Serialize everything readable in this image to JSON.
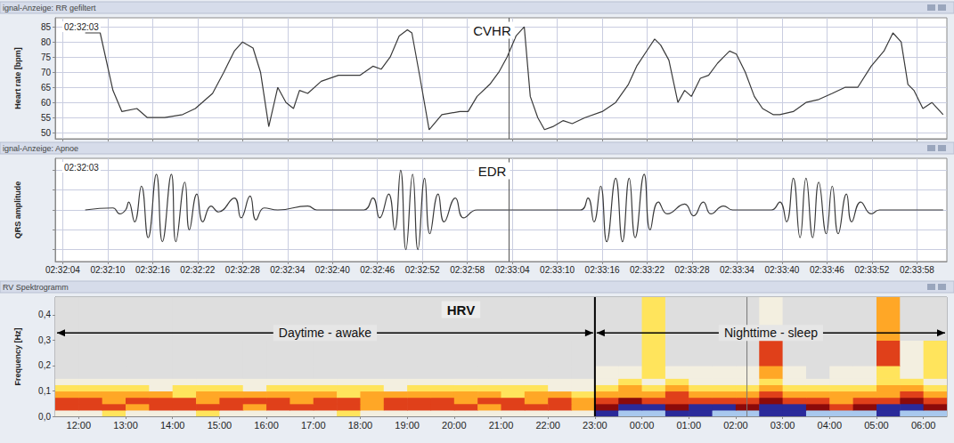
{
  "chart_data": [
    {
      "type": "line",
      "header": "ignal-Anzeige: RR gefiltert",
      "title": "CVHR",
      "time_label": "02:32:03",
      "y_label": "Heart rate [bpm]",
      "color": "#3a3a3a",
      "line_style": "solid",
      "x": [
        9127.0,
        9129.0,
        9130.7,
        9131.9,
        9133.9,
        9135.3,
        9137.6,
        9140.0,
        9141.7,
        9144.0,
        9145.5,
        9146.9,
        9148.0,
        9149.4,
        9150.4,
        9151.5,
        9152.7,
        9153.8,
        9154.8,
        9155.6,
        9156.7,
        9158.5,
        9160.8,
        9163.7,
        9165.4,
        9166.5,
        9167.7,
        9168.9,
        9170.0,
        9170.6,
        9171.7,
        9172.9,
        9174.6,
        9177.0,
        9178.1,
        9179.3,
        9181.0,
        9182.2,
        9183.3,
        9184.5,
        9185.6,
        9186.4,
        9187.4,
        9188.3,
        9189.4,
        9190.8,
        9192.0,
        9193.7,
        9196.0,
        9197.8,
        9199.5,
        9200.6,
        9202.2,
        9203.0,
        9203.8,
        9204.9,
        9206.1,
        9207.0,
        9207.9,
        9209.1,
        9210.2,
        9211.4,
        9212.2,
        9213.0,
        9213.9,
        9215.1,
        9216.3,
        9217.4,
        9218.8,
        9219.7,
        9221.5,
        9223.2,
        9224.9,
        9226.7,
        9228.4,
        9230.1,
        9231.9,
        9233.6,
        9234.8,
        9235.9,
        9236.8,
        9237.6,
        9238.8,
        9240.0,
        9241.5
      ],
      "values": [
        83,
        83,
        64,
        57,
        58,
        55,
        55,
        56,
        58,
        63,
        70,
        77,
        80,
        78,
        70,
        52,
        65,
        60,
        58,
        64,
        63,
        67,
        69,
        69,
        72,
        71,
        75,
        82,
        84,
        83,
        68,
        51,
        56,
        57,
        57,
        62,
        66,
        70,
        75,
        82,
        85,
        62,
        55,
        51,
        52,
        54,
        53,
        55,
        57,
        60,
        66,
        72,
        78,
        81,
        79,
        74,
        60,
        64,
        62,
        68,
        69,
        73,
        75,
        77,
        76,
        70,
        62,
        58,
        56,
        56,
        57,
        60,
        61,
        63,
        65,
        65,
        72,
        77,
        83,
        80,
        66,
        64,
        58,
        60,
        56
      ],
      "xlim": [
        9123,
        9242
      ],
      "xticks": [
        9124,
        9130,
        9136,
        9142,
        9148,
        9154,
        9160,
        9166,
        9172,
        9178,
        9184,
        9190,
        9196,
        9202,
        9208,
        9214,
        9220,
        9226,
        9232,
        9238
      ],
      "ylim": [
        48,
        88
      ],
      "yticks": [
        50,
        55,
        60,
        65,
        70,
        75,
        80,
        85
      ],
      "cursor": 9183.5,
      "grid": true,
      "tick_labels": "y"
    },
    {
      "type": "line",
      "header": "ignal-Anzeige: Apnoe",
      "title": "EDR",
      "time_label": "02:32:03",
      "y_label": "QRS amplitude",
      "color": "#3a3a3a",
      "line_style": "smooth",
      "x": [
        9127.0,
        9130.7,
        9131.6,
        9132.4,
        9132.8,
        9133.6,
        9134.5,
        9135.4,
        9136.5,
        9137.3,
        9138.5,
        9139.1,
        9140.3,
        9140.9,
        9141.9,
        9142.7,
        9143.8,
        9144.8,
        9146.9,
        9147.8,
        9149.0,
        9149.8,
        9150.9,
        9152.7,
        9156.7,
        9157.9,
        9164.2,
        9165.4,
        9166.3,
        9167.5,
        9168.3,
        9169.1,
        9169.8,
        9170.7,
        9171.4,
        9172.3,
        9173.0,
        9174.1,
        9174.9,
        9176.4,
        9177.5,
        9179.3,
        9193.1,
        9194.1,
        9194.9,
        9195.8,
        9196.6,
        9197.8,
        9198.7,
        9199.6,
        9200.4,
        9201.6,
        9202.4,
        9203.5,
        9204.7,
        9207.0,
        9208.2,
        9209.5,
        9210.5,
        9212.2,
        9213.4,
        9218.6,
        9219.7,
        9220.6,
        9221.5,
        9222.4,
        9223.2,
        9224.1,
        9224.9,
        9225.9,
        9226.7,
        9227.5,
        9228.6,
        9229.3,
        9230.5,
        9231.9,
        9233.0,
        9241.5
      ],
      "values": [
        0,
        0.05,
        -0.1,
        0,
        0.2,
        -0.3,
        0.6,
        -0.7,
        0.9,
        -0.8,
        0.9,
        -0.8,
        0.7,
        -0.5,
        0.4,
        -0.3,
        0.1,
        -0.05,
        0.3,
        -0.2,
        0.35,
        -0.25,
        0.05,
        0,
        0.1,
        0,
        0,
        0.3,
        -0.2,
        0.4,
        -0.5,
        1.0,
        -1.0,
        0.9,
        -1.0,
        0.8,
        -0.6,
        0.4,
        -0.3,
        0.3,
        -0.2,
        0,
        0,
        0.3,
        -0.3,
        0.6,
        -0.8,
        0.8,
        -0.8,
        0.8,
        -0.7,
        0.9,
        -0.5,
        0.2,
        -0.1,
        0.15,
        -0.15,
        0.2,
        -0.1,
        0.1,
        0,
        0,
        0.2,
        -0.3,
        0.8,
        -0.7,
        0.8,
        -0.7,
        0.7,
        -0.6,
        0.6,
        -0.6,
        0.4,
        -0.3,
        0.2,
        -0.1,
        0,
        0
      ],
      "xlim": [
        9123,
        9242
      ],
      "xticks": [
        {
          "value": 9124,
          "label": "02:32:04"
        },
        {
          "value": 9130,
          "label": "02:32:10"
        },
        {
          "value": 9136,
          "label": "02:32:16"
        },
        {
          "value": 9142,
          "label": "02:32:22"
        },
        {
          "value": 9148,
          "label": "02:32:28"
        },
        {
          "value": 9154,
          "label": "02:32:34"
        },
        {
          "value": 9160,
          "label": "02:32:40"
        },
        {
          "value": 9166,
          "label": "02:32:46"
        },
        {
          "value": 9172,
          "label": "02:32:52"
        },
        {
          "value": 9178,
          "label": "02:32:58"
        },
        {
          "value": 9184,
          "label": "02:33:04"
        },
        {
          "value": 9190,
          "label": "02:33:10"
        },
        {
          "value": 9196,
          "label": "02:33:16"
        },
        {
          "value": 9202,
          "label": "02:33:22"
        },
        {
          "value": 9208,
          "label": "02:33:28"
        },
        {
          "value": 9214,
          "label": "02:33:34"
        },
        {
          "value": 9220,
          "label": "02:33:40"
        },
        {
          "value": 9226,
          "label": "02:33:46"
        },
        {
          "value": 9232,
          "label": "02:33:52"
        },
        {
          "value": 9238,
          "label": "02:33:58"
        }
      ],
      "ylim": [
        -1.3,
        1.3
      ],
      "yticks": [
        -1,
        -0.5,
        0,
        0.5,
        1
      ],
      "cursor": 9183.5,
      "grid": true,
      "tick_labels": "x"
    },
    {
      "type": "heatmap",
      "header": "RV Spektrogramm",
      "title": "HRV",
      "y_label": "Frequency [Hz]",
      "time_edges": [
        11.5,
        12,
        12.5,
        13,
        13.5,
        14,
        14.5,
        15,
        15.5,
        16,
        16.5,
        17,
        17.5,
        18,
        18.5,
        19,
        19.5,
        20,
        20.5,
        21,
        21.5,
        22,
        22.5,
        23,
        23.5,
        24,
        24.5,
        25,
        25.5,
        26,
        26.5,
        27,
        27.5,
        28,
        28.5,
        29,
        29.5,
        30,
        30.5
      ],
      "freq_edges": [
        0,
        0.025,
        0.05,
        0.075,
        0.1,
        0.125,
        0.15,
        0.2,
        0.3,
        0.47
      ],
      "power": [
        [
          1,
          1,
          2,
          1,
          1,
          1,
          2,
          1,
          1,
          1,
          1,
          1,
          2,
          1,
          1,
          1,
          1,
          1,
          1,
          1,
          1,
          1,
          1,
          6,
          7,
          7,
          6,
          6,
          7,
          7,
          6,
          6,
          7,
          7,
          7,
          6,
          7,
          7
        ],
        [
          4,
          4,
          4,
          3,
          4,
          4,
          4,
          4,
          3,
          4,
          4,
          4,
          4,
          3,
          4,
          4,
          4,
          4,
          3,
          4,
          4,
          4,
          3,
          5,
          6,
          6,
          5,
          6,
          6,
          5,
          6,
          6,
          5,
          4,
          5,
          6,
          6,
          5
        ],
        [
          4,
          4,
          3,
          4,
          4,
          4,
          3,
          4,
          4,
          4,
          3,
          4,
          4,
          3,
          4,
          4,
          4,
          3,
          4,
          4,
          3,
          4,
          3,
          4,
          5,
          4,
          4,
          4,
          4,
          4,
          5,
          4,
          4,
          3,
          4,
          4,
          5,
          4
        ],
        [
          3,
          3,
          3,
          3,
          3,
          2,
          3,
          3,
          3,
          3,
          3,
          3,
          2,
          3,
          3,
          3,
          3,
          3,
          3,
          2,
          3,
          3,
          2,
          3,
          3,
          3,
          4,
          3,
          3,
          3,
          4,
          3,
          3,
          3,
          3,
          3,
          4,
          3
        ],
        [
          2,
          2,
          2,
          2,
          1,
          2,
          2,
          2,
          1,
          2,
          2,
          2,
          2,
          2,
          1,
          2,
          2,
          2,
          2,
          2,
          2,
          1,
          1,
          2,
          3,
          2,
          3,
          2,
          2,
          2,
          3,
          2,
          2,
          2,
          2,
          3,
          3,
          2
        ],
        [
          1,
          1,
          1,
          1,
          1,
          1,
          1,
          1,
          1,
          1,
          1,
          1,
          1,
          1,
          1,
          1,
          1,
          1,
          1,
          1,
          1,
          1,
          1,
          1,
          2,
          1,
          2,
          1,
          1,
          1,
          2,
          1,
          1,
          1,
          1,
          2,
          2,
          1
        ],
        [
          0,
          0,
          0,
          0,
          0,
          0,
          0,
          0,
          0,
          0,
          0,
          0,
          0,
          0,
          0,
          0,
          0,
          0,
          0,
          0,
          0,
          0,
          0,
          1,
          1,
          2,
          1,
          1,
          1,
          1,
          3,
          1,
          0,
          1,
          1,
          2,
          1,
          2
        ],
        [
          0,
          0,
          0,
          0,
          0,
          0,
          0,
          0,
          0,
          0,
          0,
          0,
          0,
          0,
          0,
          0,
          0,
          0,
          0,
          0,
          0,
          0,
          0,
          0,
          0,
          2,
          0,
          0,
          0,
          0,
          4,
          0,
          0,
          0,
          0,
          4,
          1,
          2
        ],
        [
          0,
          0,
          0,
          0,
          0,
          0,
          0,
          0,
          0,
          0,
          0,
          0,
          0,
          0,
          0,
          0,
          0,
          0,
          0,
          0,
          0,
          0,
          0,
          0,
          0,
          2,
          0,
          0,
          0,
          0,
          1,
          0,
          0,
          0,
          0,
          3,
          0,
          0
        ]
      ],
      "xlim": [
        11.5,
        30.5
      ],
      "xticks": [
        {
          "value": 12,
          "label": "12:00"
        },
        {
          "value": 13,
          "label": "13:00"
        },
        {
          "value": 14,
          "label": "14:00"
        },
        {
          "value": 15,
          "label": "15:00"
        },
        {
          "value": 16,
          "label": "16:00"
        },
        {
          "value": 17,
          "label": "17:00"
        },
        {
          "value": 18,
          "label": "18:00"
        },
        {
          "value": 19,
          "label": "19:00"
        },
        {
          "value": 20,
          "label": "20:00"
        },
        {
          "value": 21,
          "label": "21:00"
        },
        {
          "value": 22,
          "label": "22:00"
        },
        {
          "value": 23,
          "label": "23:00"
        },
        {
          "value": 24,
          "label": "00:00"
        },
        {
          "value": 25,
          "label": "01:00"
        },
        {
          "value": 26,
          "label": "02:00"
        },
        {
          "value": 27,
          "label": "03:00"
        },
        {
          "value": 28,
          "label": "04:00"
        },
        {
          "value": 29,
          "label": "05:00"
        },
        {
          "value": 30,
          "label": "06:00"
        }
      ],
      "ylim": [
        0,
        0.47
      ],
      "yticks": [
        {
          "value": 0,
          "label": "0,0"
        },
        {
          "value": 0.1,
          "label": "0,1"
        },
        {
          "value": 0.2,
          "label": "0,2"
        },
        {
          "value": 0.3,
          "label": "0,3"
        },
        {
          "value": 0.4,
          "label": "0,4"
        }
      ],
      "periods": [
        {
          "label": "Daytime - awake",
          "start": 11.5,
          "end": 23
        },
        {
          "label": "Nighttime - sleep",
          "start": 23,
          "end": 30.5
        }
      ],
      "boundary": 23,
      "cursor": 26.24,
      "grid": false
    }
  ]
}
